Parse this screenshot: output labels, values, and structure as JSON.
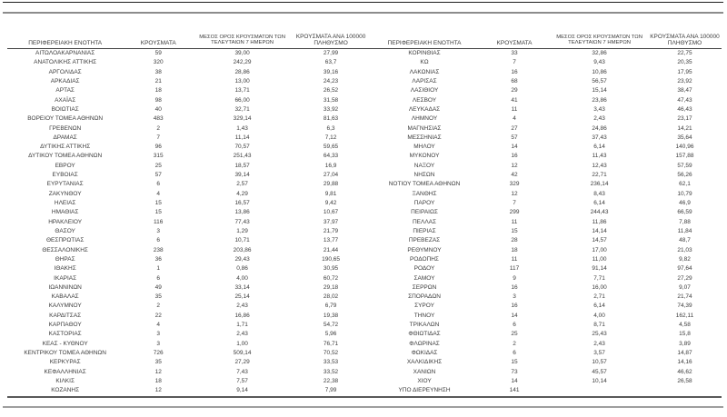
{
  "headers": {
    "region": "ΠΕΡΙΦΕΡΕΙΑΚΗ ΕΝΟΤΗΤΑ",
    "cases": "ΚΡΟΥΣΜΑΤΑ",
    "avg7": "ΜΕΣΟΣ ΟΡΟΣ ΚΡΟΥΣΜΑΤΩΝ ΤΩΝ ΤΕΛΕΥΤΑΙΩΝ 7 ΗΜΕΡΩΝ",
    "per100k": "ΚΡΟΥΣΜΑΤΑ ΑΝΑ 100000 ΠΛΗΘΥΣΜΟ"
  },
  "colors": {
    "text": "#3b3b3b",
    "top_line": "#1f1f1f",
    "gray_line": "#8c8c8c",
    "header_underline": "#404040",
    "table_bottom": "#595959"
  },
  "left_rows": [
    [
      "ΑΙΤΩΛΟΑΚΑΡΝΑΝΙΑΣ",
      "59",
      "39,00",
      "27,99"
    ],
    [
      "ΑΝΑΤΟΛΙΚΗΣ ΑΤΤΙΚΗΣ",
      "320",
      "242,29",
      "63,7"
    ],
    [
      "ΑΡΓΟΛΙΔΑΣ",
      "38",
      "28,86",
      "39,16"
    ],
    [
      "ΑΡΚΑΔΙΑΣ",
      "21",
      "13,00",
      "24,23"
    ],
    [
      "ΑΡΤΑΣ",
      "18",
      "13,71",
      "26,52"
    ],
    [
      "ΑΧΑΪΑΣ",
      "98",
      "66,00",
      "31,58"
    ],
    [
      "ΒΟΙΩΤΙΑΣ",
      "40",
      "32,71",
      "33,92"
    ],
    [
      "ΒΟΡΕΙΟΥ ΤΟΜΕΑ ΑΘΗΝΩΝ",
      "483",
      "329,14",
      "81,63"
    ],
    [
      "ΓΡΕΒΕΝΩΝ",
      "2",
      "1,43",
      "6,3"
    ],
    [
      "ΔΡΑΜΑΣ",
      "7",
      "11,14",
      "7,12"
    ],
    [
      "ΔΥΤΙΚΗΣ ΑΤΤΙΚΗΣ",
      "96",
      "70,57",
      "59,65"
    ],
    [
      "ΔΥΤΙΚΟΥ ΤΟΜΕΑ ΑΘΗΝΩΝ",
      "315",
      "251,43",
      "64,33"
    ],
    [
      "ΕΒΡΟΥ",
      "25",
      "18,57",
      "16,9"
    ],
    [
      "ΕΥΒΟΙΑΣ",
      "57",
      "39,14",
      "27,04"
    ],
    [
      "ΕΥΡΥΤΑΝΙΑΣ",
      "6",
      "2,57",
      "29,88"
    ],
    [
      "ΖΑΚΥΝΘΟΥ",
      "4",
      "4,29",
      "9,81"
    ],
    [
      "ΗΛΕΙΑΣ",
      "15",
      "16,57",
      "9,42"
    ],
    [
      "ΗΜΑΘΙΑΣ",
      "15",
      "13,86",
      "10,67"
    ],
    [
      "ΗΡΑΚΛΕΙΟΥ",
      "116",
      "77,43",
      "37,97"
    ],
    [
      "ΘΑΣΟΥ",
      "3",
      "1,29",
      "21,79"
    ],
    [
      "ΘΕΣΠΡΩΤΙΑΣ",
      "6",
      "10,71",
      "13,77"
    ],
    [
      "ΘΕΣΣΑΛΟΝΙΚΗΣ",
      "238",
      "203,86",
      "21,44"
    ],
    [
      "ΘΗΡΑΣ",
      "36",
      "29,43",
      "190,65"
    ],
    [
      "ΙΘΑΚΗΣ",
      "1",
      "0,86",
      "30,95"
    ],
    [
      "ΙΚΑΡΙΑΣ",
      "6",
      "4,00",
      "60,72"
    ],
    [
      "ΙΩΑΝΝΙΝΩΝ",
      "49",
      "33,14",
      "29,18"
    ],
    [
      "ΚΑΒΑΛΑΣ",
      "35",
      "25,14",
      "28,02"
    ],
    [
      "ΚΑΛΥΜΝΟΥ",
      "2",
      "2,43",
      "6,79"
    ],
    [
      "ΚΑΡΔΙΤΣΑΣ",
      "22",
      "16,86",
      "19,38"
    ],
    [
      "ΚΑΡΠΑΘΟΥ",
      "4",
      "1,71",
      "54,72"
    ],
    [
      "ΚΑΣΤΟΡΙΑΣ",
      "3",
      "2,43",
      "5,96"
    ],
    [
      "ΚΕΑΣ - ΚΥΘΝΟΥ",
      "3",
      "1,00",
      "76,71"
    ],
    [
      "ΚΕΝΤΡΙΚΟΥ ΤΟΜΕΑ ΑΘΗΝΩΝ",
      "726",
      "509,14",
      "70,52"
    ],
    [
      "ΚΕΡΚΥΡΑΣ",
      "35",
      "27,29",
      "33,53"
    ],
    [
      "ΚΕΦΑΛΛΗΝΙΑΣ",
      "12",
      "7,43",
      "33,52"
    ],
    [
      "ΚΙΛΚΙΣ",
      "18",
      "7,57",
      "22,38"
    ],
    [
      "ΚΟΖΑΝΗΣ",
      "12",
      "9,14",
      "7,99"
    ]
  ],
  "right_rows": [
    [
      "ΚΟΡΙΝΘΙΑΣ",
      "33",
      "32,86",
      "22,75"
    ],
    [
      "ΚΩ",
      "7",
      "9,43",
      "20,35"
    ],
    [
      "ΛΑΚΩΝΙΑΣ",
      "16",
      "10,86",
      "17,95"
    ],
    [
      "ΛΑΡΙΣΑΣ",
      "68",
      "56,57",
      "23,92"
    ],
    [
      "ΛΑΣΙΘΙΟΥ",
      "29",
      "15,14",
      "38,47"
    ],
    [
      "ΛΕΣΒΟΥ",
      "41",
      "23,86",
      "47,43"
    ],
    [
      "ΛΕΥΚΑΔΑΣ",
      "11",
      "3,43",
      "46,43"
    ],
    [
      "ΛΗΜΝΟΥ",
      "4",
      "2,43",
      "23,17"
    ],
    [
      "ΜΑΓΝΗΣΙΑΣ",
      "27",
      "24,86",
      "14,21"
    ],
    [
      "ΜΕΣΣΗΝΙΑΣ",
      "57",
      "37,43",
      "35,64"
    ],
    [
      "ΜΗΛΟΥ",
      "14",
      "6,14",
      "140,96"
    ],
    [
      "ΜΥΚΟΝΟΥ",
      "16",
      "11,43",
      "157,88"
    ],
    [
      "ΝΑΞΟΥ",
      "12",
      "12,43",
      "57,59"
    ],
    [
      "ΝΗΣΩΝ",
      "42",
      "22,71",
      "56,26"
    ],
    [
      "ΝΟΤΙΟΥ ΤΟΜΕΑ ΑΘΗΝΩΝ",
      "329",
      "236,14",
      "62,1"
    ],
    [
      "ΞΑΝΘΗΣ",
      "12",
      "8,43",
      "10,79"
    ],
    [
      "ΠΑΡΟΥ",
      "7",
      "6,14",
      "46,9"
    ],
    [
      "ΠΕΙΡΑΙΩΣ",
      "299",
      "244,43",
      "66,59"
    ],
    [
      "ΠΕΛΛΑΣ",
      "11",
      "11,86",
      "7,88"
    ],
    [
      "ΠΙΕΡΙΑΣ",
      "15",
      "14,14",
      "11,84"
    ],
    [
      "ΠΡΕΒΕΖΑΣ",
      "28",
      "14,57",
      "48,7"
    ],
    [
      "ΡΕΘΥΜΝΟΥ",
      "18",
      "17,00",
      "21,03"
    ],
    [
      "ΡΟΔΟΠΗΣ",
      "11",
      "11,00",
      "9,82"
    ],
    [
      "ΡΟΔΟΥ",
      "117",
      "91,14",
      "97,64"
    ],
    [
      "ΣΑΜΟΥ",
      "9",
      "7,71",
      "27,29"
    ],
    [
      "ΣΕΡΡΩΝ",
      "16",
      "16,00",
      "9,07"
    ],
    [
      "ΣΠΟΡΑΔΩΝ",
      "3",
      "2,71",
      "21,74"
    ],
    [
      "ΣΥΡΟΥ",
      "16",
      "6,14",
      "74,39"
    ],
    [
      "ΤΗΝΟΥ",
      "14",
      "4,00",
      "162,11"
    ],
    [
      "ΤΡΙΚΑΛΩΝ",
      "6",
      "8,71",
      "4,58"
    ],
    [
      "ΦΘΙΩΤΙΔΑΣ",
      "25",
      "25,43",
      "15,8"
    ],
    [
      "ΦΛΩΡΙΝΑΣ",
      "2",
      "2,43",
      "3,89"
    ],
    [
      "ΦΩΚΙΔΑΣ",
      "6",
      "3,57",
      "14,87"
    ],
    [
      "ΧΑΛΚΙΔΙΚΗΣ",
      "15",
      "10,57",
      "14,16"
    ],
    [
      "ΧΑΝΙΩΝ",
      "73",
      "45,57",
      "46,62"
    ],
    [
      "ΧΙΟΥ",
      "14",
      "10,14",
      "26,58"
    ],
    [
      "ΥΠΟ ΔΙΕΡΕΥΝΗΣΗ",
      "141",
      "",
      ""
    ]
  ]
}
